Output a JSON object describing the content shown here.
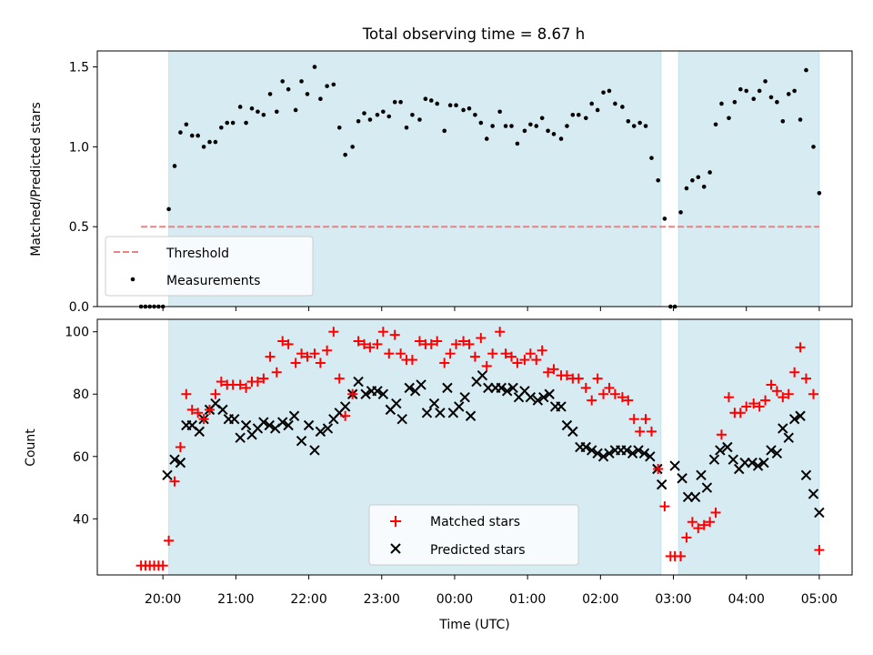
{
  "figure": {
    "title": "Total observing time = 8.67 h",
    "xlabel": "Time (UTC)",
    "xticks": [
      "20:00",
      "21:00",
      "22:00",
      "23:00",
      "00:00",
      "01:00",
      "02:00",
      "03:00",
      "04:00",
      "05:00"
    ]
  },
  "chart_data": [
    {
      "type": "scatter",
      "ylabel": "Matched/Predicted stars",
      "xlim_hours": [
        19.1,
        29.45
      ],
      "ylim": [
        0,
        1.6
      ],
      "yticks": [
        "0.0",
        "0.5",
        "1.0",
        "1.5"
      ],
      "observing_windows_hours": [
        [
          20.08,
          26.83
        ],
        [
          27.07,
          29.0
        ]
      ],
      "threshold": {
        "name": "Threshold",
        "value": 0.5,
        "x_range_hours": [
          19.7,
          29.0
        ],
        "color": "#f08080"
      },
      "legend": {
        "placement": "lower-left",
        "entries": [
          "Threshold",
          "Measurements"
        ]
      },
      "series": [
        {
          "name": "Measurements",
          "color": "#000000",
          "x_hours": [
            19.7,
            19.76,
            19.82,
            19.88,
            19.94,
            20.0,
            20.08,
            20.16,
            20.24,
            20.32,
            20.4,
            20.48,
            20.56,
            20.64,
            20.72,
            20.8,
            20.88,
            20.96,
            21.06,
            21.14,
            21.22,
            21.3,
            21.38,
            21.47,
            21.56,
            21.64,
            21.72,
            21.82,
            21.9,
            21.98,
            22.08,
            22.16,
            22.25,
            22.34,
            22.42,
            22.5,
            22.6,
            22.68,
            22.76,
            22.84,
            22.94,
            23.02,
            23.1,
            23.18,
            23.26,
            23.34,
            23.42,
            23.52,
            23.6,
            23.68,
            23.76,
            23.86,
            23.94,
            24.02,
            24.12,
            24.2,
            24.28,
            24.36,
            24.44,
            24.52,
            24.62,
            24.7,
            24.78,
            24.86,
            24.96,
            25.04,
            25.12,
            25.2,
            25.28,
            25.36,
            25.46,
            25.54,
            25.62,
            25.7,
            25.8,
            25.88,
            25.96,
            26.04,
            26.12,
            26.2,
            26.3,
            26.38,
            26.46,
            26.54,
            26.62,
            26.7,
            26.79,
            26.88,
            26.96,
            27.02,
            27.1,
            27.18,
            27.26,
            27.34,
            27.42,
            27.5,
            27.58,
            27.66,
            27.76,
            27.84,
            27.92,
            28.0,
            28.1,
            28.18,
            28.26,
            28.34,
            28.42,
            28.5,
            28.58,
            28.66,
            28.74,
            28.82,
            28.92,
            29.0
          ],
          "y": [
            0,
            0,
            0,
            0,
            0,
            0,
            0.61,
            0.88,
            1.09,
            1.14,
            1.07,
            1.07,
            1.0,
            1.03,
            1.03,
            1.12,
            1.15,
            1.15,
            1.25,
            1.15,
            1.24,
            1.22,
            1.2,
            1.33,
            1.22,
            1.41,
            1.36,
            1.23,
            1.41,
            1.33,
            1.5,
            1.3,
            1.38,
            1.39,
            1.12,
            0.95,
            1.0,
            1.16,
            1.21,
            1.17,
            1.2,
            1.22,
            1.19,
            1.28,
            1.28,
            1.12,
            1.2,
            1.17,
            1.3,
            1.29,
            1.27,
            1.1,
            1.26,
            1.26,
            1.23,
            1.24,
            1.2,
            1.15,
            1.05,
            1.13,
            1.22,
            1.13,
            1.13,
            1.02,
            1.1,
            1.14,
            1.13,
            1.18,
            1.1,
            1.08,
            1.05,
            1.13,
            1.2,
            1.2,
            1.18,
            1.27,
            1.23,
            1.34,
            1.35,
            1.27,
            1.25,
            1.16,
            1.13,
            1.15,
            1.13,
            0.93,
            0.79,
            0.55,
            0,
            0,
            0.59,
            0.74,
            0.79,
            0.81,
            0.75,
            0.84,
            1.14,
            1.27,
            1.18,
            1.28,
            1.36,
            1.35,
            1.3,
            1.35,
            1.41,
            1.31,
            1.28,
            1.16,
            1.33,
            1.35,
            1.17,
            1.48,
            1.0,
            0.71
          ]
        }
      ]
    },
    {
      "type": "scatter",
      "ylabel": "Count",
      "xlim_hours": [
        19.1,
        29.45
      ],
      "ylim": [
        22,
        104
      ],
      "yticks": [
        "40",
        "60",
        "80",
        "100"
      ],
      "observing_windows_hours": [
        [
          20.08,
          26.83
        ],
        [
          27.07,
          29.0
        ]
      ],
      "legend": {
        "placement": "lower-center",
        "entries": [
          "Matched stars",
          "Predicted stars"
        ]
      },
      "series": [
        {
          "name": "Matched stars",
          "marker": "plus",
          "color": "#ff0000",
          "x_hours": [
            19.7,
            19.76,
            19.82,
            19.88,
            19.94,
            20.0,
            20.08,
            20.16,
            20.24,
            20.32,
            20.4,
            20.48,
            20.56,
            20.64,
            20.72,
            20.8,
            20.88,
            20.96,
            21.06,
            21.14,
            21.22,
            21.3,
            21.38,
            21.47,
            21.56,
            21.64,
            21.72,
            21.82,
            21.9,
            21.98,
            22.08,
            22.16,
            22.25,
            22.34,
            22.42,
            22.5,
            22.6,
            22.68,
            22.76,
            22.84,
            22.94,
            23.02,
            23.1,
            23.18,
            23.26,
            23.34,
            23.42,
            23.52,
            23.6,
            23.68,
            23.76,
            23.86,
            23.94,
            24.02,
            24.12,
            24.2,
            24.28,
            24.36,
            24.44,
            24.52,
            24.62,
            24.7,
            24.78,
            24.86,
            24.96,
            25.04,
            25.12,
            25.2,
            25.28,
            25.36,
            25.46,
            25.54,
            25.62,
            25.7,
            25.8,
            25.88,
            25.96,
            26.04,
            26.12,
            26.2,
            26.3,
            26.38,
            26.46,
            26.54,
            26.62,
            26.7,
            26.79,
            26.88,
            26.96,
            27.02,
            27.1,
            27.18,
            27.26,
            27.34,
            27.42,
            27.5,
            27.58,
            27.66,
            27.76,
            27.84,
            27.92,
            28.0,
            28.1,
            28.18,
            28.26,
            28.34,
            28.42,
            28.5,
            28.58,
            28.66,
            28.74,
            28.82,
            28.92,
            29.0
          ],
          "y": [
            25,
            25,
            25,
            25,
            25,
            25,
            33,
            52,
            63,
            80,
            75,
            74,
            72,
            75,
            80,
            84,
            83,
            83,
            83,
            82,
            84,
            84,
            85,
            92,
            87,
            97,
            96,
            90,
            93,
            92,
            93,
            90,
            94,
            100,
            85,
            73,
            80,
            97,
            96,
            95,
            96,
            100,
            93,
            99,
            93,
            91,
            91,
            97,
            96,
            96,
            97,
            90,
            93,
            96,
            97,
            96,
            92,
            98,
            89,
            93,
            100,
            93,
            92,
            90,
            91,
            93,
            91,
            94,
            87,
            88,
            86,
            86,
            85,
            85,
            82,
            78,
            85,
            80,
            82,
            80,
            79,
            78,
            72,
            68,
            72,
            68,
            56,
            44,
            28,
            28,
            28,
            34,
            39,
            37,
            38,
            39,
            42,
            67,
            79,
            74,
            74,
            76,
            77,
            76,
            78,
            83,
            81,
            79,
            80,
            87,
            95,
            85,
            80,
            30
          ]
        },
        {
          "name": "Predicted stars",
          "marker": "x",
          "color": "#000000",
          "x_hours": [
            20.06,
            20.16,
            20.24,
            20.32,
            20.4,
            20.5,
            20.56,
            20.64,
            20.72,
            20.82,
            20.9,
            20.98,
            21.06,
            21.14,
            21.22,
            21.3,
            21.38,
            21.46,
            21.54,
            21.64,
            21.72,
            21.8,
            21.9,
            22.0,
            22.08,
            22.16,
            22.26,
            22.34,
            22.42,
            22.5,
            22.6,
            22.68,
            22.78,
            22.86,
            22.94,
            23.02,
            23.12,
            23.2,
            23.28,
            23.38,
            23.46,
            23.54,
            23.62,
            23.72,
            23.8,
            23.9,
            23.98,
            24.06,
            24.14,
            24.22,
            24.3,
            24.38,
            24.46,
            24.56,
            24.64,
            24.72,
            24.8,
            24.88,
            24.96,
            25.04,
            25.14,
            25.22,
            25.3,
            25.38,
            25.46,
            25.54,
            25.62,
            25.72,
            25.8,
            25.88,
            25.96,
            26.04,
            26.12,
            26.2,
            26.28,
            26.36,
            26.44,
            26.52,
            26.6,
            26.68,
            26.78,
            26.84,
            27.02,
            27.12,
            27.2,
            27.3,
            27.38,
            27.46,
            27.56,
            27.64,
            27.74,
            27.82,
            27.9,
            27.98,
            28.08,
            28.16,
            28.24,
            28.34,
            28.42,
            28.5,
            28.58,
            28.66,
            28.74,
            28.82,
            28.92,
            29.0
          ],
          "y": [
            54,
            59,
            58,
            70,
            70,
            68,
            72,
            75,
            77,
            75,
            72,
            72,
            66,
            70,
            67,
            69,
            71,
            70,
            69,
            71,
            70,
            73,
            65,
            70,
            62,
            68,
            69,
            72,
            74,
            76,
            80,
            84,
            80,
            81,
            81,
            80,
            75,
            77,
            72,
            82,
            81,
            83,
            74,
            77,
            74,
            82,
            74,
            76,
            79,
            73,
            84,
            86,
            82,
            82,
            82,
            81,
            82,
            79,
            81,
            79,
            78,
            79,
            80,
            76,
            76,
            70,
            68,
            63,
            63,
            62,
            61,
            60,
            61,
            62,
            62,
            62,
            61,
            62,
            61,
            60,
            56,
            51,
            57,
            53,
            47,
            47,
            54,
            50,
            59,
            62,
            63,
            59,
            56,
            58,
            58,
            57,
            58,
            62,
            61,
            69,
            66,
            72,
            73,
            54,
            48,
            42
          ]
        }
      ]
    }
  ]
}
